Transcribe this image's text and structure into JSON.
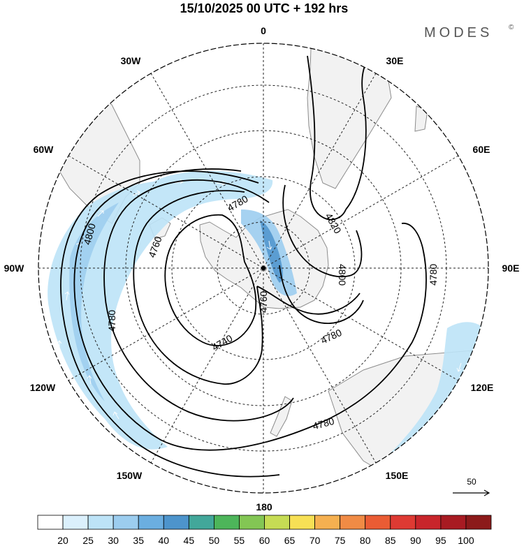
{
  "title": "15/10/2025  00 UTC  + 192 hrs",
  "brand": {
    "name": "MODES",
    "mark": "©"
  },
  "longitudes": {
    "top": "0",
    "bottom": "180",
    "left": "90W",
    "right": "90E",
    "w30": "30W",
    "e30": "30E",
    "w60": "60W",
    "e60": "60E",
    "w120": "120W",
    "e120": "120E",
    "w150": "150W",
    "e150": "150E"
  },
  "contours": {
    "c4800a": "4800",
    "c4800b": "4800",
    "c4820": "4820",
    "c4780a": "4780",
    "c4780b": "4780",
    "c4780c": "4780",
    "c4780d": "4780",
    "c4780e": "4780",
    "c4760a": "4760",
    "c4760b": "4760",
    "c4740": "4740"
  },
  "vector_reference": {
    "value": "50"
  },
  "colorbar": {
    "labels": [
      "20",
      "25",
      "30",
      "35",
      "40",
      "45",
      "50",
      "55",
      "60",
      "65",
      "70",
      "75",
      "80",
      "85",
      "90",
      "95",
      "100"
    ],
    "colors": [
      "#ffffff",
      "#dbf0fc",
      "#bde3f7",
      "#9ccdef",
      "#6baee0",
      "#4d94cc",
      "#42a79a",
      "#4db55a",
      "#83c654",
      "#c6dc54",
      "#f7e055",
      "#f5b050",
      "#f08b45",
      "#ea5c34",
      "#de3a33",
      "#c8252b",
      "#a81b22",
      "#8c1a1a"
    ]
  },
  "colors": {
    "land": "#f2f2f2",
    "coast": "#8c8c8c",
    "grid": "#222222",
    "contour": "#000000"
  }
}
